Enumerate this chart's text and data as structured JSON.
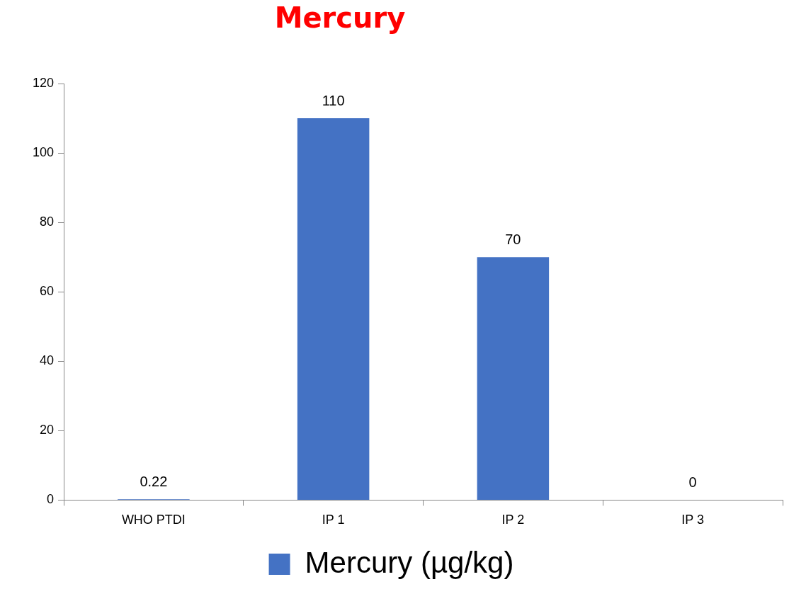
{
  "chart_data": {
    "type": "bar",
    "title": "Mercury",
    "categories": [
      "WHO PTDI",
      "IP 1",
      "IP 2",
      "IP 3"
    ],
    "series": [
      {
        "name": "Mercury (µg/kg)",
        "color": "#4472c4",
        "values": [
          0.22,
          110,
          70,
          0
        ]
      }
    ],
    "ylim": [
      0,
      120
    ],
    "yticks": [
      0,
      20,
      40,
      60,
      80,
      100,
      120
    ],
    "grid": false,
    "legend": "bottom",
    "data_labels": true
  }
}
